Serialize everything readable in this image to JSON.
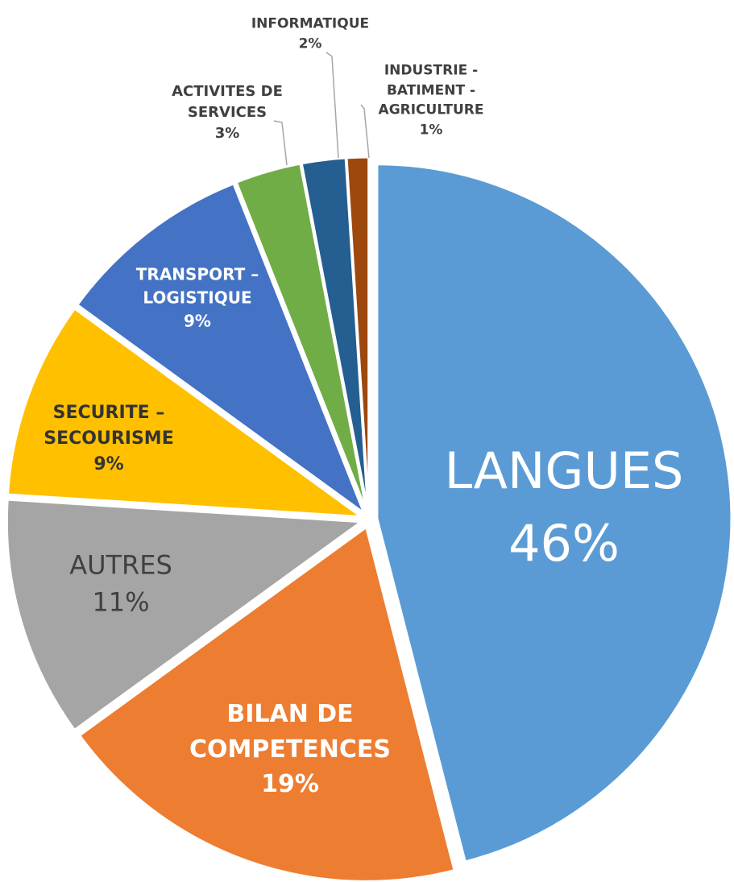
{
  "chart_data": {
    "type": "pie",
    "categories": [
      "LANGUES",
      "BILAN DE COMPETENCES",
      "AUTRES",
      "SECURITE – SECOURISME",
      "TRANSPORT – LOGISTIQUE",
      "ACTIVITES DE SERVICES",
      "INFORMATIQUE",
      "INDUSTRIE - BATIMENT - AGRICULTURE"
    ],
    "values": [
      46,
      19,
      11,
      9,
      9,
      3,
      2,
      1
    ],
    "value_labels": [
      "46%",
      "19%",
      "11%",
      "9%",
      "9%",
      "3%",
      "2%",
      "1%"
    ],
    "colors": [
      "#5b9bd5",
      "#ed7d31",
      "#a5a5a5",
      "#ffc000",
      "#4472c4",
      "#70ad47",
      "#255e91",
      "#9e480e"
    ]
  }
}
